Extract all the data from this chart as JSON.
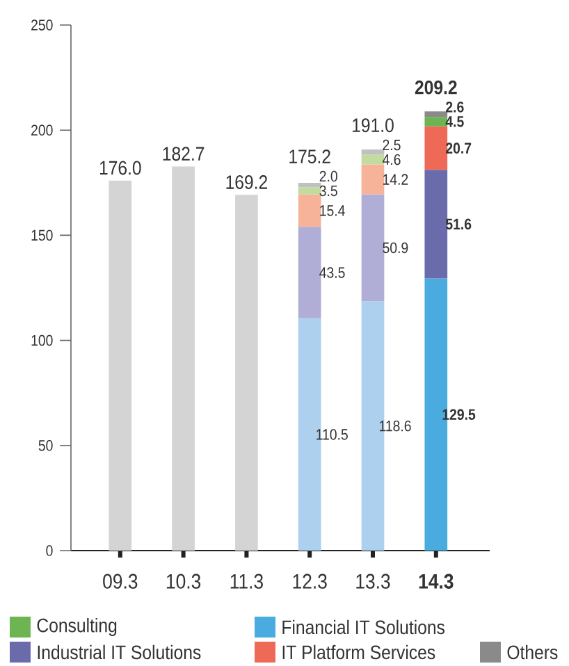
{
  "chart_data": {
    "type": "bar",
    "stacked": true,
    "categories": [
      "09.3",
      "10.3",
      "11.3",
      "12.3",
      "13.3",
      "14.3"
    ],
    "series": [
      {
        "name": "Financial IT Solutions",
        "color": "#4aabdf",
        "colors": [
          "#acd0ee",
          "#acd0ee",
          "#acd0ee",
          "#acd0ee",
          "#acd0ee",
          "#4aabdf"
        ],
        "values": [
          null,
          null,
          null,
          110.5,
          118.6,
          129.5
        ],
        "value_labels": [
          null,
          null,
          null,
          "110.5",
          "118.6",
          "129.5"
        ]
      },
      {
        "name": "Industrial IT Solutions",
        "color": "#6a6bab",
        "colors": [
          "#b0aed6",
          "#b0aed6",
          "#b0aed6",
          "#b0aed6",
          "#b0aed6",
          "#6a6bab"
        ],
        "values": [
          null,
          null,
          null,
          43.5,
          50.9,
          51.6
        ],
        "value_labels": [
          null,
          null,
          null,
          "43.5",
          "50.9",
          "51.6"
        ]
      },
      {
        "name": "IT Platform Services",
        "color": "#ee6a57",
        "colors": [
          "#f6b39a",
          "#f6b39a",
          "#f6b39a",
          "#f6b39a",
          "#f6b39a",
          "#ee6a57"
        ],
        "values": [
          null,
          null,
          null,
          15.4,
          14.2,
          20.7
        ],
        "value_labels": [
          null,
          null,
          null,
          "15.4",
          "14.2",
          "20.7"
        ]
      },
      {
        "name": "Consulting",
        "color": "#6db552",
        "colors": [
          "#c2dca0",
          "#c2dca0",
          "#c2dca0",
          "#c2dca0",
          "#c2dca0",
          "#6db552"
        ],
        "values": [
          null,
          null,
          null,
          3.5,
          4.6,
          4.5
        ],
        "value_labels": [
          null,
          null,
          null,
          "3.5",
          "4.6",
          "4.5"
        ]
      },
      {
        "name": "Others",
        "color": "#8a8a8a",
        "colors": [
          "#c0c0c0",
          "#c0c0c0",
          "#c0c0c0",
          "#c0c0c0",
          "#c0c0c0",
          "#8a8a8a"
        ],
        "values": [
          null,
          null,
          null,
          2.0,
          2.5,
          2.6
        ],
        "value_labels": [
          null,
          null,
          null,
          "2.0",
          "2.5",
          "2.6"
        ]
      },
      {
        "color": "#d4d4d4",
        "values": [
          176.0,
          182.7,
          169.2,
          null,
          null,
          null
        ]
      }
    ],
    "totals": [
      "176.0",
      "182.7",
      "169.2",
      "175.2",
      "191.0",
      "209.2"
    ],
    "ylim": [
      0,
      250
    ],
    "yticks": [
      0,
      50,
      100,
      150,
      200,
      250
    ],
    "legend": "bottom"
  }
}
